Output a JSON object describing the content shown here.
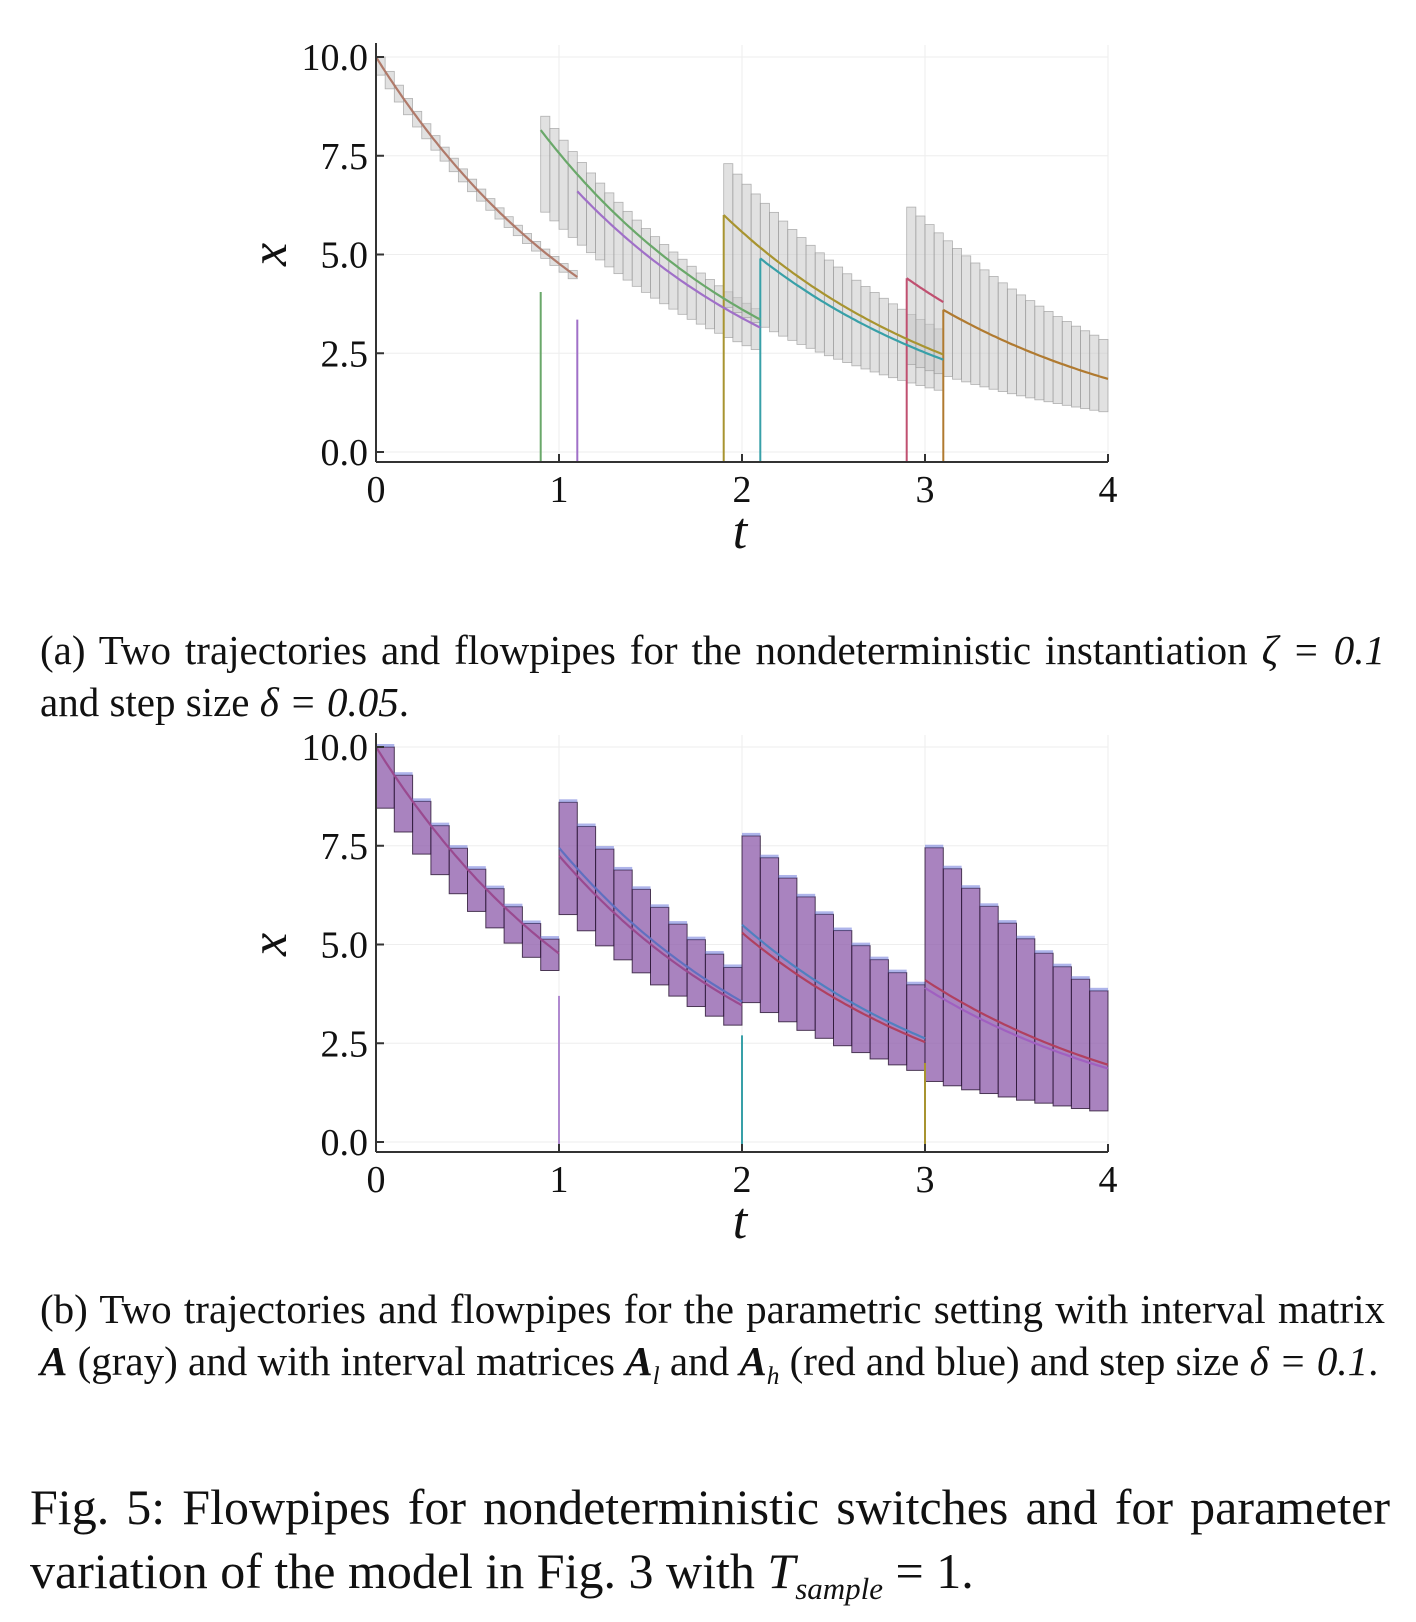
{
  "chart_data": [
    {
      "type": "line",
      "panel": "a",
      "xlabel": "t",
      "ylabel": "x",
      "xlim": [
        0,
        4
      ],
      "ylim": [
        0,
        10
      ],
      "xticks": [
        "0",
        "1",
        "2",
        "3",
        "4"
      ],
      "yticks": [
        "0.0",
        "2.5",
        "5.0",
        "7.5",
        "10.0"
      ],
      "grid": true,
      "step": 0.05,
      "segments": [
        {
          "t0": 0.0,
          "t1": 1.1,
          "x0": 10.0,
          "color": "#b07a6a"
        },
        {
          "t0": 0.9,
          "t1": 2.1,
          "x0": 8.15,
          "color": "#6aa86a"
        },
        {
          "t0": 1.1,
          "t1": 2.1,
          "x0": 6.6,
          "color": "#a070c8"
        },
        {
          "t0": 1.9,
          "t1": 3.1,
          "x0": 6.0,
          "color": "#a89430"
        },
        {
          "t0": 2.1,
          "t1": 3.1,
          "x0": 4.9,
          "color": "#38a0a8"
        },
        {
          "t0": 2.9,
          "t1": 3.1,
          "x0": 4.4,
          "color": "#c05070"
        },
        {
          "t0": 3.1,
          "t1": 4.0,
          "x0": 3.6,
          "color": "#b07a30"
        }
      ],
      "verticals": [
        {
          "t": 0.9,
          "x": 4.05,
          "color": "#6aa86a"
        },
        {
          "t": 1.1,
          "x": 3.35,
          "color": "#a070c8"
        },
        {
          "t": 1.9,
          "x": 6.0,
          "color": "#a89430"
        },
        {
          "t": 2.1,
          "x": 4.9,
          "color": "#38a0a8"
        },
        {
          "t": 2.9,
          "x": 4.4,
          "color": "#c05070"
        },
        {
          "t": 3.1,
          "x": 3.6,
          "color": "#b07a30"
        }
      ],
      "flowpipes": [
        {
          "t0": 0.0,
          "t1": 1.1,
          "lo0": 9.9,
          "hi0": 10.0
        },
        {
          "t0": 0.9,
          "t1": 2.1,
          "lo0": 6.3,
          "hi0": 8.5
        },
        {
          "t0": 1.9,
          "t1": 3.1,
          "lo0": 3.8,
          "hi0": 7.3
        },
        {
          "t0": 2.9,
          "t1": 4.0,
          "lo0": 2.3,
          "hi0": 6.2
        }
      ]
    },
    {
      "type": "line",
      "panel": "b",
      "xlabel": "t",
      "ylabel": "x",
      "xlim": [
        0,
        4
      ],
      "ylim": [
        0,
        10
      ],
      "xticks": [
        "0",
        "1",
        "2",
        "3",
        "4"
      ],
      "yticks": [
        "0.0",
        "2.5",
        "5.0",
        "7.5",
        "10.0"
      ],
      "grid": true,
      "step": 0.1,
      "segments": [
        {
          "t0": 0.0,
          "t1": 1.0,
          "x0": 10.0,
          "color": "#9a4a90"
        },
        {
          "t0": 1.0,
          "t1": 2.0,
          "x0": 7.45,
          "color": "#6070c0"
        },
        {
          "t0": 1.0,
          "t1": 2.0,
          "x0": 7.25,
          "color": "#9a4a90"
        },
        {
          "t0": 2.0,
          "t1": 3.0,
          "x0": 5.5,
          "color": "#5080c0"
        },
        {
          "t0": 2.0,
          "t1": 3.0,
          "x0": 5.3,
          "color": "#b04060"
        },
        {
          "t0": 3.0,
          "t1": 4.0,
          "x0": 4.1,
          "color": "#b04060"
        },
        {
          "t0": 3.0,
          "t1": 4.0,
          "x0": 3.9,
          "color": "#a060c0"
        }
      ],
      "verticals": [
        {
          "t": 1.0,
          "x": 3.7,
          "color": "#b08ad0"
        },
        {
          "t": 2.0,
          "x": 2.7,
          "color": "#38a0a8"
        },
        {
          "t": 3.0,
          "x": 2.0,
          "color": "#a89430"
        }
      ],
      "flowpipes": [
        {
          "t0": 0.0,
          "t1": 1.0,
          "lo0": 9.1,
          "hi0": 10.0
        },
        {
          "t0": 1.0,
          "t1": 2.0,
          "lo0": 6.2,
          "hi0": 8.6
        },
        {
          "t0": 2.0,
          "t1": 3.0,
          "lo0": 3.8,
          "hi0": 7.75
        },
        {
          "t0": 3.0,
          "t1": 4.0,
          "lo0": 1.65,
          "hi0": 7.45
        }
      ]
    }
  ],
  "captions": {
    "a_prefix": "(a) Two trajectories and flowpipes for the nondeterministic instantiation ",
    "a_zeta": "ζ = 0.1",
    "a_mid": " and step size ",
    "a_delta": "δ = 0.05",
    "a_end": ".",
    "b_prefix": "(b) Two trajectories and flowpipes for the parametric setting with interval matrix ",
    "b_A": "A",
    "b_mid1": " (gray) and with interval matrices ",
    "b_Al": "A",
    "b_l": "l",
    "b_and": " and ",
    "b_Ah": "A",
    "b_h": "h",
    "b_mid2": " (red and blue) and step size ",
    "b_delta": "δ = 0.1",
    "b_end": ".",
    "fig_prefix": "Fig. 5: Flowpipes for nondeterministic switches and for parameter variation of the model in Fig. 3 with ",
    "fig_T": "T",
    "fig_sub": "sample",
    "fig_eq": " = 1",
    "fig_end": "."
  }
}
